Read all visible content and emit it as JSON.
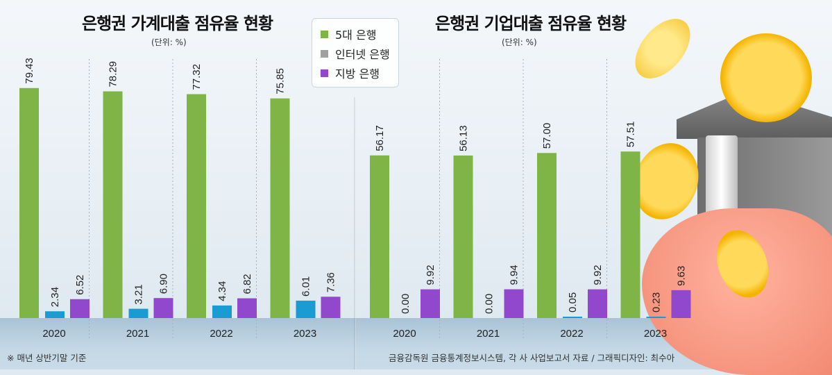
{
  "legend": [
    {
      "label": "5대 은행",
      "color": "#7fb447"
    },
    {
      "label": "인터넷 은행",
      "color": "#a0a0a0"
    },
    {
      "label": "지방 은행",
      "color": "#9148cc"
    }
  ],
  "bar_colors": [
    "#7fb447",
    "#1a9bd1",
    "#9148cc"
  ],
  "footnote": "※ 매년 상반기말 기준",
  "source": "금융감독원 금융통계정보시스템, 각 사 사업보고서 자료 / 그래픽디자인: 최수아",
  "chart_data": [
    {
      "type": "bar",
      "title": "은행권 가계대출 점유율 현황",
      "unit": "(단위: %)",
      "categories": [
        "2020",
        "2021",
        "2022",
        "2023"
      ],
      "series": [
        {
          "name": "5대 은행",
          "values": [
            79.43,
            78.29,
            77.32,
            75.85
          ]
        },
        {
          "name": "인터넷 은행",
          "values": [
            2.34,
            3.21,
            4.34,
            6.01
          ]
        },
        {
          "name": "지방 은행",
          "values": [
            6.52,
            6.9,
            6.82,
            7.36
          ]
        }
      ],
      "ylim": [
        0,
        100
      ]
    },
    {
      "type": "bar",
      "title": "은행권 기업대출 점유율 현황",
      "unit": "(단위: %)",
      "categories": [
        "2020",
        "2021",
        "2022",
        "2023"
      ],
      "series": [
        {
          "name": "5대 은행",
          "values": [
            56.17,
            56.13,
            57.0,
            57.51
          ]
        },
        {
          "name": "인터넷 은행",
          "values": [
            0.0,
            0.0,
            0.05,
            0.23
          ]
        },
        {
          "name": "지방 은행",
          "values": [
            9.92,
            9.94,
            9.92,
            9.63
          ]
        }
      ],
      "ylim": [
        0,
        100
      ]
    }
  ]
}
